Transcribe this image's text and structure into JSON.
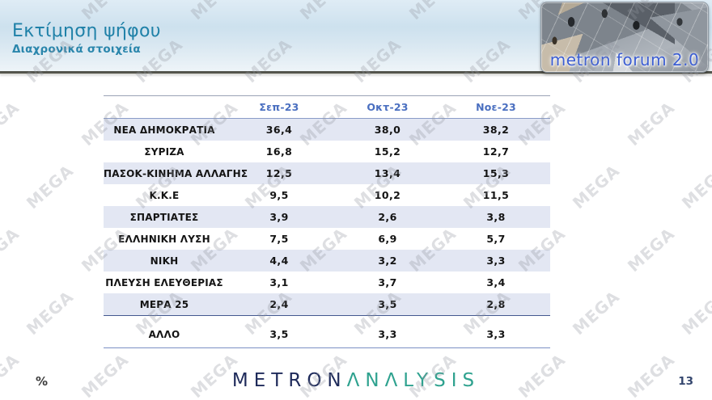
{
  "slide": {
    "title": "Εκτίμηση ψήφου",
    "subtitle": "Διαχρονικά στοιχεία",
    "page_number": "13",
    "unit_label": "%",
    "watermark_text": "MEGA"
  },
  "header_logo": {
    "text": "metron forum 2.0"
  },
  "footer_logo": {
    "word1": "METRON",
    "word2": "ΛNΛLYSIS"
  },
  "table": {
    "columns": [
      "Σεπ-23",
      "Οκτ-23",
      "Νοε-23"
    ],
    "rows": [
      {
        "label": "ΝΕΑ ΔΗΜΟΚΡΑΤΙΑ",
        "values": [
          "36,4",
          "38,0",
          "38,2"
        ]
      },
      {
        "label": "ΣΥΡΙΖΑ",
        "values": [
          "16,8",
          "15,2",
          "12,7"
        ]
      },
      {
        "label": "ΠΑΣΟΚ-ΚΙΝΗΜΑ ΑΛΛΑΓΗΣ",
        "values": [
          "12,5",
          "13,4",
          "15,3"
        ]
      },
      {
        "label": "Κ.Κ.Ε",
        "values": [
          "9,5",
          "10,2",
          "11,5"
        ]
      },
      {
        "label": "ΣΠΑΡΤΙΑΤΕΣ",
        "values": [
          "3,9",
          "2,6",
          "3,8"
        ]
      },
      {
        "label": "ΕΛΛΗΝΙΚΗ ΛΥΣΗ",
        "values": [
          "7,5",
          "6,9",
          "5,7"
        ]
      },
      {
        "label": "ΝΙΚΗ",
        "values": [
          "4,4",
          "3,2",
          "3,3"
        ]
      },
      {
        "label": "ΠΛΕΥΣΗ ΕΛΕΥΘΕΡΙΑΣ",
        "values": [
          "3,1",
          "3,7",
          "3,4"
        ]
      },
      {
        "label": "ΜΕΡΑ 25",
        "values": [
          "2,4",
          "3,5",
          "2,8"
        ]
      },
      {
        "label": "ΑΛΛΟ",
        "values": [
          "3,5",
          "3,3",
          "3,3"
        ]
      }
    ]
  },
  "chart_data": {
    "type": "table",
    "title": "Εκτίμηση ψήφου — Διαχρονικά στοιχεία",
    "categories": [
      "Σεπ-23",
      "Οκτ-23",
      "Νοε-23"
    ],
    "unit": "%",
    "series": [
      {
        "name": "ΝΕΑ ΔΗΜΟΚΡΑΤΙΑ",
        "values": [
          36.4,
          38.0,
          38.2
        ]
      },
      {
        "name": "ΣΥΡΙΖΑ",
        "values": [
          16.8,
          15.2,
          12.7
        ]
      },
      {
        "name": "ΠΑΣΟΚ-ΚΙΝΗΜΑ ΑΛΛΑΓΗΣ",
        "values": [
          12.5,
          13.4,
          15.3
        ]
      },
      {
        "name": "Κ.Κ.Ε",
        "values": [
          9.5,
          10.2,
          11.5
        ]
      },
      {
        "name": "ΣΠΑΡΤΙΑΤΕΣ",
        "values": [
          3.9,
          2.6,
          3.8
        ]
      },
      {
        "name": "ΕΛΛΗΝΙΚΗ ΛΥΣΗ",
        "values": [
          7.5,
          6.9,
          5.7
        ]
      },
      {
        "name": "ΝΙΚΗ",
        "values": [
          4.4,
          3.2,
          3.3
        ]
      },
      {
        "name": "ΠΛΕΥΣΗ ΕΛΕΥΘΕΡΙΑΣ",
        "values": [
          3.1,
          3.7,
          3.4
        ]
      },
      {
        "name": "ΜΕΡΑ 25",
        "values": [
          2.4,
          3.5,
          2.8
        ]
      },
      {
        "name": "ΑΛΛΟ",
        "values": [
          3.5,
          3.3,
          3.3
        ]
      }
    ]
  },
  "colors": {
    "title_blue": "#1f81a8",
    "column_header_blue": "#4a6fc0",
    "row_shade": "#e3e7f3",
    "table_border_blue": "#8a9cc8",
    "logo_text_blue": "#3c5ed2",
    "metron_navy": "#1e2a5a",
    "analysis_teal": "#2fa28f"
  }
}
